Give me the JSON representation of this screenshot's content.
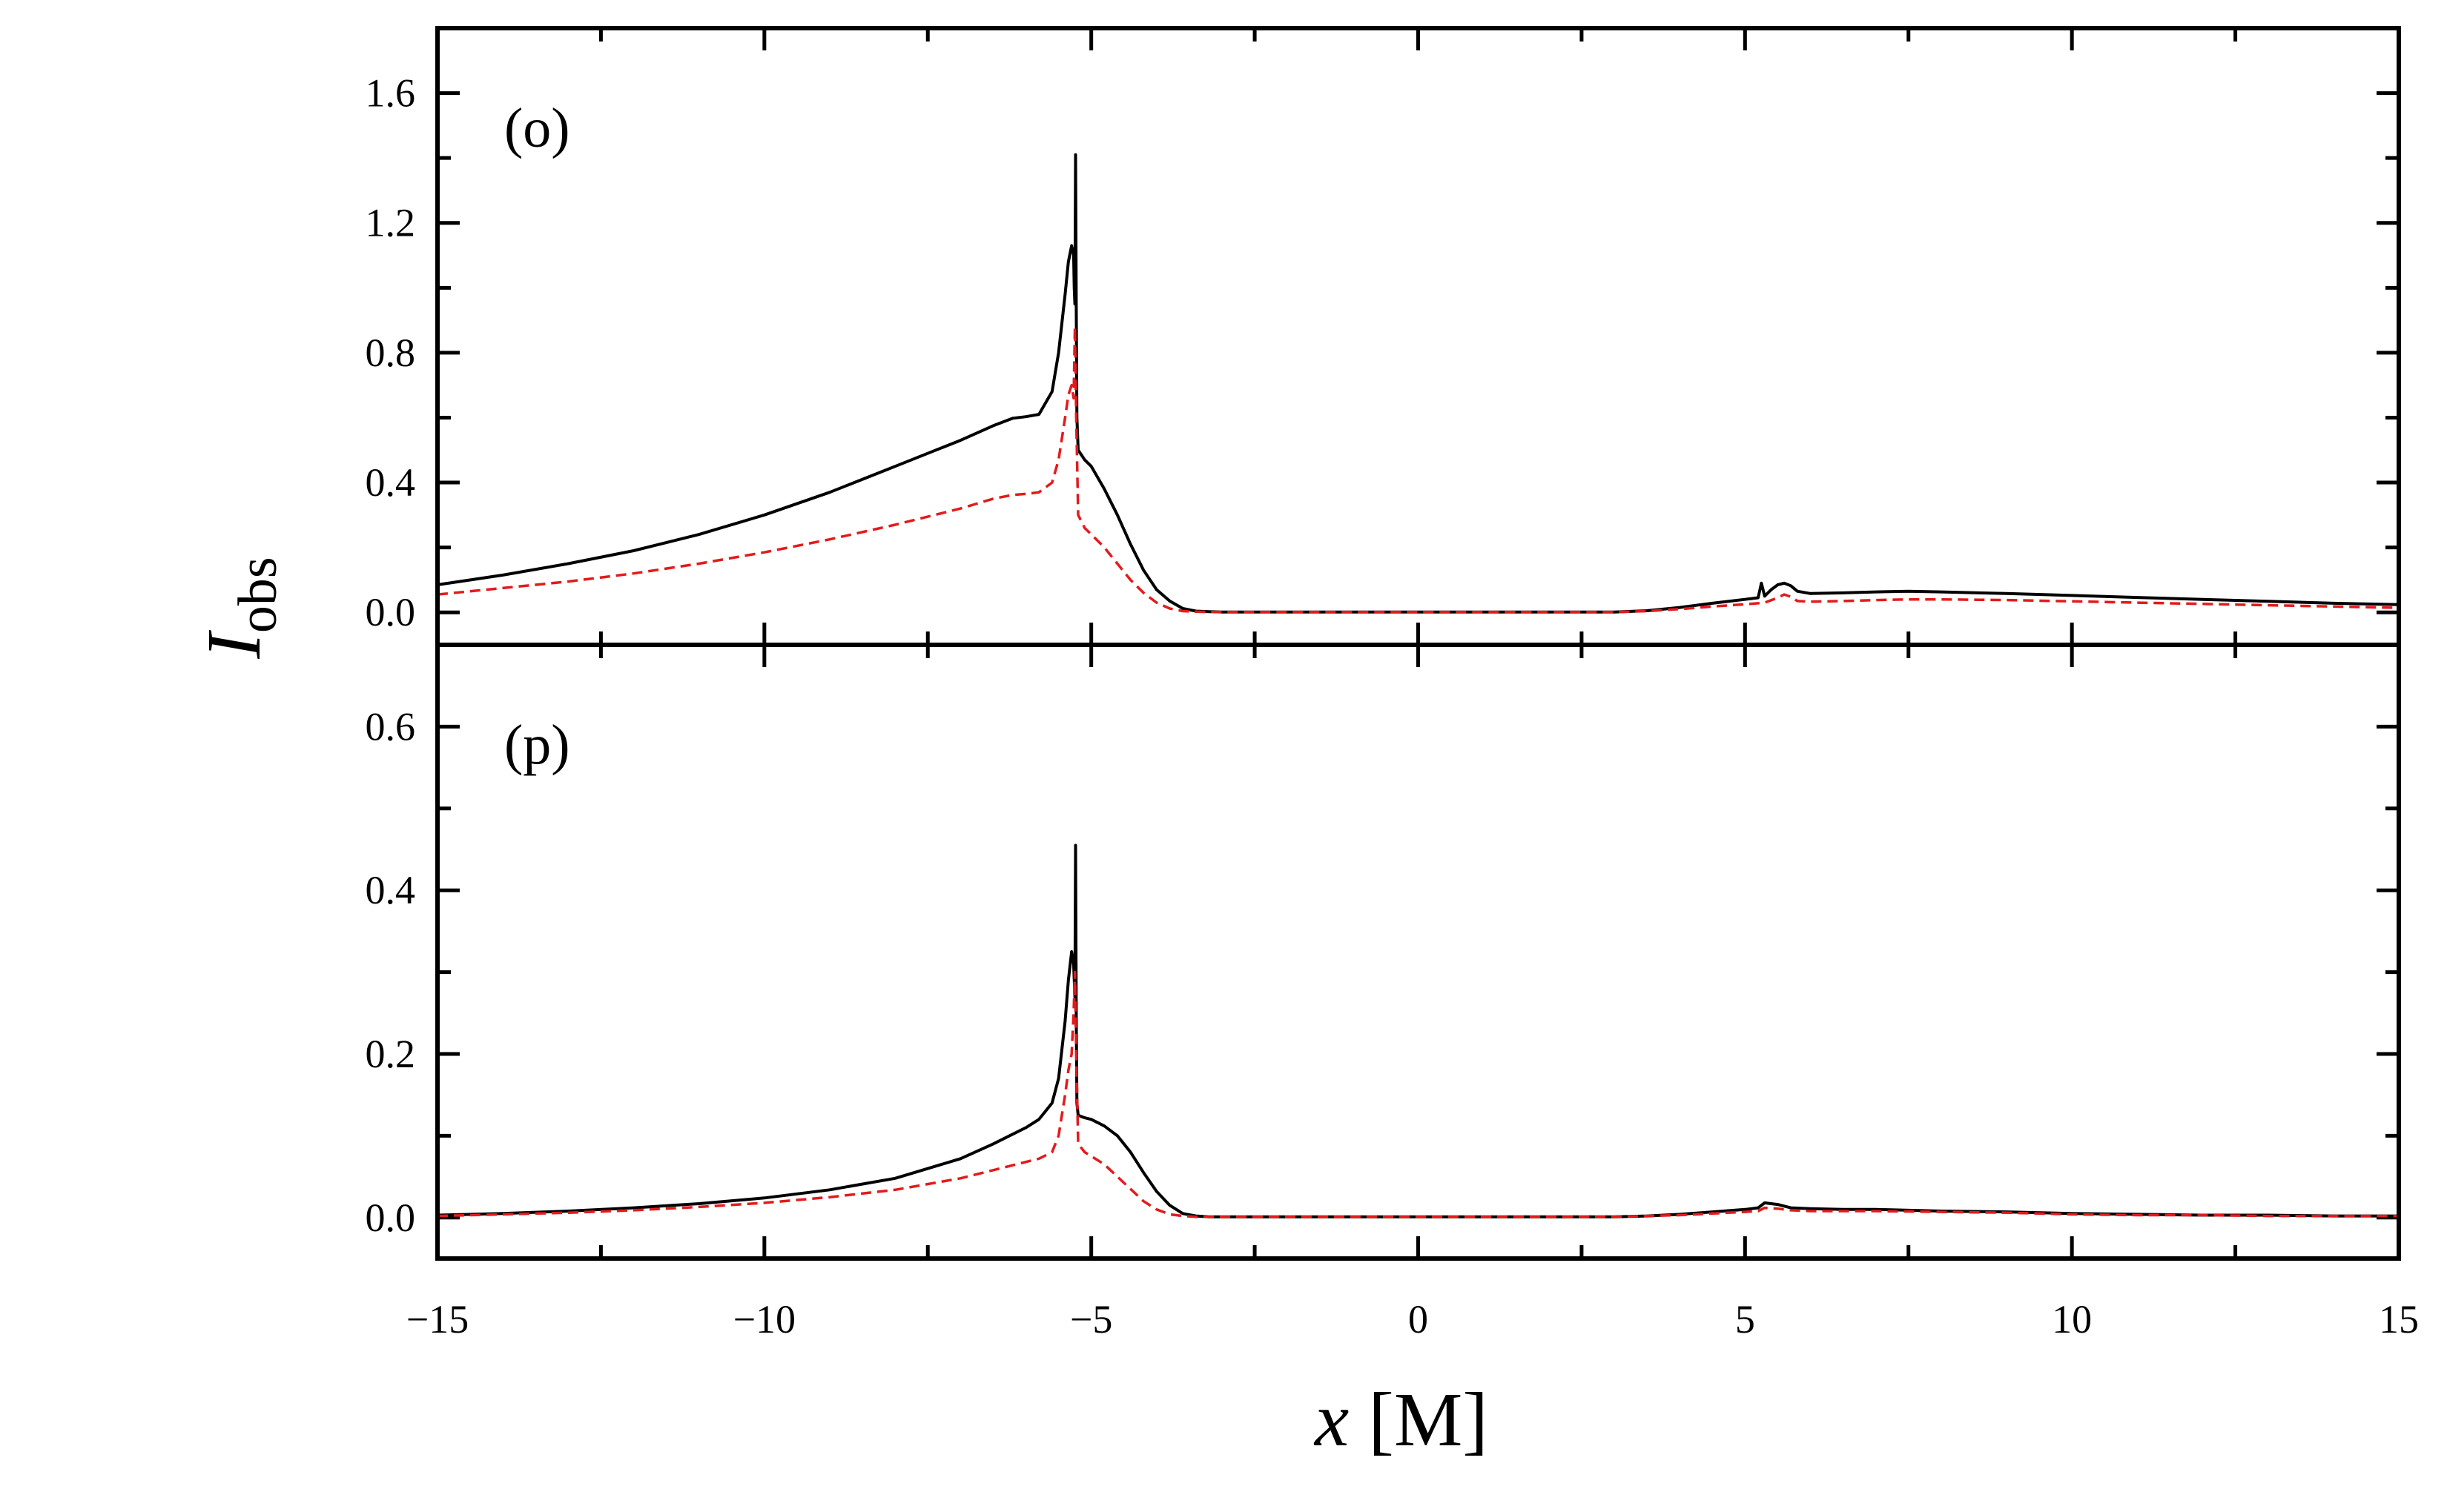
{
  "chart_data": [
    {
      "type": "line",
      "panel_label": "(o)",
      "xlim": [
        -15,
        15
      ],
      "ylim": [
        -0.1,
        1.8
      ],
      "x_ticks": [
        -15,
        -10,
        -5,
        0,
        5,
        10,
        15
      ],
      "y_ticks": [
        0.0,
        0.4,
        0.8,
        1.2,
        1.6
      ],
      "y_tick_labels": [
        "0.0",
        "0.4",
        "0.8",
        "1.2",
        "1.6"
      ],
      "ylabel_main": "I",
      "ylabel_sub": "obs",
      "grid": false,
      "series": [
        {
          "style": "solid",
          "color": "#000000",
          "x": [
            -15,
            -14,
            -13,
            -12,
            -11,
            -10,
            -9,
            -8,
            -7,
            -6.5,
            -6.2,
            -6.0,
            -5.8,
            -5.6,
            -5.5,
            -5.4,
            -5.35,
            -5.3,
            -5.27,
            -5.26,
            -5.25,
            -5.24,
            -5.23,
            -5.22,
            -5.2,
            -5.1,
            -5.0,
            -4.8,
            -4.6,
            -4.4,
            -4.2,
            -4.0,
            -3.8,
            -3.6,
            -3.4,
            -3.2,
            -3.0,
            -2.0,
            -1.0,
            0,
            1,
            2,
            3,
            3.5,
            4,
            4.5,
            5.0,
            5.2,
            5.25,
            5.3,
            5.4,
            5.5,
            5.6,
            5.7,
            5.8,
            6.0,
            6.5,
            7,
            7.5,
            8,
            9,
            10,
            11,
            12,
            13,
            14,
            15
          ],
          "y": [
            0.085,
            0.115,
            0.15,
            0.19,
            0.24,
            0.3,
            0.37,
            0.45,
            0.53,
            0.575,
            0.598,
            0.603,
            0.61,
            0.68,
            0.8,
            0.98,
            1.08,
            1.13,
            1.1,
            1.0,
            0.95,
            1.41,
            0.95,
            0.6,
            0.5,
            0.47,
            0.45,
            0.38,
            0.3,
            0.21,
            0.13,
            0.07,
            0.035,
            0.012,
            0.004,
            0.002,
            0.001,
            0.001,
            0.001,
            0.001,
            0.001,
            0.001,
            0.001,
            0.005,
            0.015,
            0.028,
            0.04,
            0.045,
            0.09,
            0.05,
            0.07,
            0.085,
            0.09,
            0.082,
            0.065,
            0.058,
            0.06,
            0.063,
            0.065,
            0.063,
            0.058,
            0.052,
            0.046,
            0.04,
            0.034,
            0.028,
            0.024
          ]
        },
        {
          "style": "dashed",
          "color": "#e31a1c",
          "x": [
            -15,
            -14,
            -13,
            -12,
            -11,
            -10,
            -9,
            -8,
            -7,
            -6.5,
            -6.2,
            -6.0,
            -5.8,
            -5.6,
            -5.5,
            -5.4,
            -5.35,
            -5.3,
            -5.27,
            -5.25,
            -5.23,
            -5.2,
            -5.15,
            -5.1,
            -5.0,
            -4.8,
            -4.6,
            -4.4,
            -4.2,
            -4.0,
            -3.8,
            -3.6,
            -3.4,
            -3.2,
            -3.0,
            -2.0,
            -1.0,
            0,
            1,
            2,
            3,
            3.5,
            4,
            4.5,
            5.0,
            5.2,
            5.3,
            5.5,
            5.6,
            5.7,
            5.8,
            6.0,
            6.5,
            7,
            7.5,
            8,
            9,
            10,
            11,
            12,
            13,
            14,
            15
          ],
          "y": [
            0.055,
            0.075,
            0.095,
            0.12,
            0.15,
            0.185,
            0.225,
            0.27,
            0.32,
            0.35,
            0.362,
            0.365,
            0.37,
            0.4,
            0.47,
            0.6,
            0.67,
            0.7,
            0.66,
            0.88,
            0.6,
            0.3,
            0.28,
            0.26,
            0.24,
            0.2,
            0.15,
            0.1,
            0.06,
            0.03,
            0.012,
            0.004,
            0.002,
            0.001,
            0.001,
            0.001,
            0.001,
            0.001,
            0.001,
            0.001,
            0.001,
            0.004,
            0.01,
            0.018,
            0.025,
            0.028,
            0.03,
            0.045,
            0.055,
            0.048,
            0.035,
            0.033,
            0.035,
            0.038,
            0.04,
            0.04,
            0.038,
            0.034,
            0.03,
            0.026,
            0.022,
            0.018,
            0.014
          ]
        }
      ]
    },
    {
      "type": "line",
      "panel_label": "(p)",
      "xlim": [
        -15,
        15
      ],
      "ylim": [
        -0.05,
        0.7
      ],
      "x_ticks": [
        -15,
        -10,
        -5,
        0,
        5,
        10,
        15
      ],
      "x_tick_labels": [
        "−15",
        "−10",
        "−5",
        "0",
        "5",
        "10",
        "15"
      ],
      "y_ticks": [
        0.0,
        0.2,
        0.4,
        0.6
      ],
      "y_tick_labels": [
        "0.0",
        "0.2",
        "0.4",
        "0.6"
      ],
      "xlabel_main": "x",
      "xlabel_unit": " [M]",
      "grid": false,
      "series": [
        {
          "style": "solid",
          "color": "#000000",
          "x": [
            -15,
            -14,
            -13,
            -12,
            -11,
            -10,
            -9,
            -8,
            -7,
            -6.5,
            -6.0,
            -5.8,
            -5.6,
            -5.5,
            -5.4,
            -5.35,
            -5.3,
            -5.27,
            -5.25,
            -5.24,
            -5.23,
            -5.22,
            -5.2,
            -5.1,
            -5.0,
            -4.8,
            -4.6,
            -4.4,
            -4.2,
            -4.0,
            -3.8,
            -3.6,
            -3.4,
            -3.2,
            -3.0,
            -2.0,
            -1.0,
            0,
            1,
            2,
            3,
            3.5,
            4,
            4.5,
            5.0,
            5.2,
            5.3,
            5.5,
            5.7,
            6.0,
            6.5,
            7,
            8,
            9,
            10,
            11,
            12,
            13,
            14,
            15
          ],
          "y": [
            0.003,
            0.005,
            0.008,
            0.012,
            0.017,
            0.024,
            0.034,
            0.048,
            0.072,
            0.09,
            0.11,
            0.12,
            0.14,
            0.17,
            0.24,
            0.29,
            0.325,
            0.31,
            0.27,
            0.455,
            0.25,
            0.14,
            0.125,
            0.122,
            0.12,
            0.112,
            0.1,
            0.08,
            0.055,
            0.032,
            0.015,
            0.005,
            0.002,
            0.001,
            0.001,
            0.001,
            0.001,
            0.001,
            0.001,
            0.001,
            0.001,
            0.002,
            0.004,
            0.007,
            0.01,
            0.012,
            0.018,
            0.016,
            0.012,
            0.011,
            0.01,
            0.01,
            0.008,
            0.007,
            0.005,
            0.004,
            0.003,
            0.003,
            0.002,
            0.002
          ]
        },
        {
          "style": "dashed",
          "color": "#e31a1c",
          "x": [
            -15,
            -14,
            -13,
            -12,
            -11,
            -10,
            -9,
            -8,
            -7,
            -6.5,
            -6.0,
            -5.8,
            -5.6,
            -5.5,
            -5.4,
            -5.35,
            -5.3,
            -5.27,
            -5.25,
            -5.23,
            -5.2,
            -5.1,
            -5.0,
            -4.8,
            -4.6,
            -4.4,
            -4.2,
            -4.0,
            -3.8,
            -3.6,
            -3.4,
            -3.2,
            -3.0,
            -2.0,
            -1.0,
            0,
            1,
            2,
            3,
            3.5,
            4,
            4.5,
            5.0,
            5.2,
            5.3,
            5.5,
            5.7,
            6.0,
            6.5,
            7,
            8,
            9,
            10,
            11,
            12,
            13,
            14,
            15
          ],
          "y": [
            0.002,
            0.004,
            0.006,
            0.009,
            0.013,
            0.018,
            0.025,
            0.034,
            0.048,
            0.058,
            0.068,
            0.072,
            0.08,
            0.1,
            0.15,
            0.18,
            0.2,
            0.25,
            0.3,
            0.2,
            0.09,
            0.08,
            0.075,
            0.065,
            0.05,
            0.035,
            0.02,
            0.01,
            0.004,
            0.002,
            0.001,
            0.001,
            0.001,
            0.001,
            0.001,
            0.001,
            0.001,
            0.001,
            0.001,
            0.002,
            0.003,
            0.005,
            0.007,
            0.008,
            0.012,
            0.011,
            0.009,
            0.008,
            0.008,
            0.008,
            0.007,
            0.006,
            0.004,
            0.003,
            0.003,
            0.002,
            0.002,
            0.002
          ]
        }
      ]
    }
  ]
}
